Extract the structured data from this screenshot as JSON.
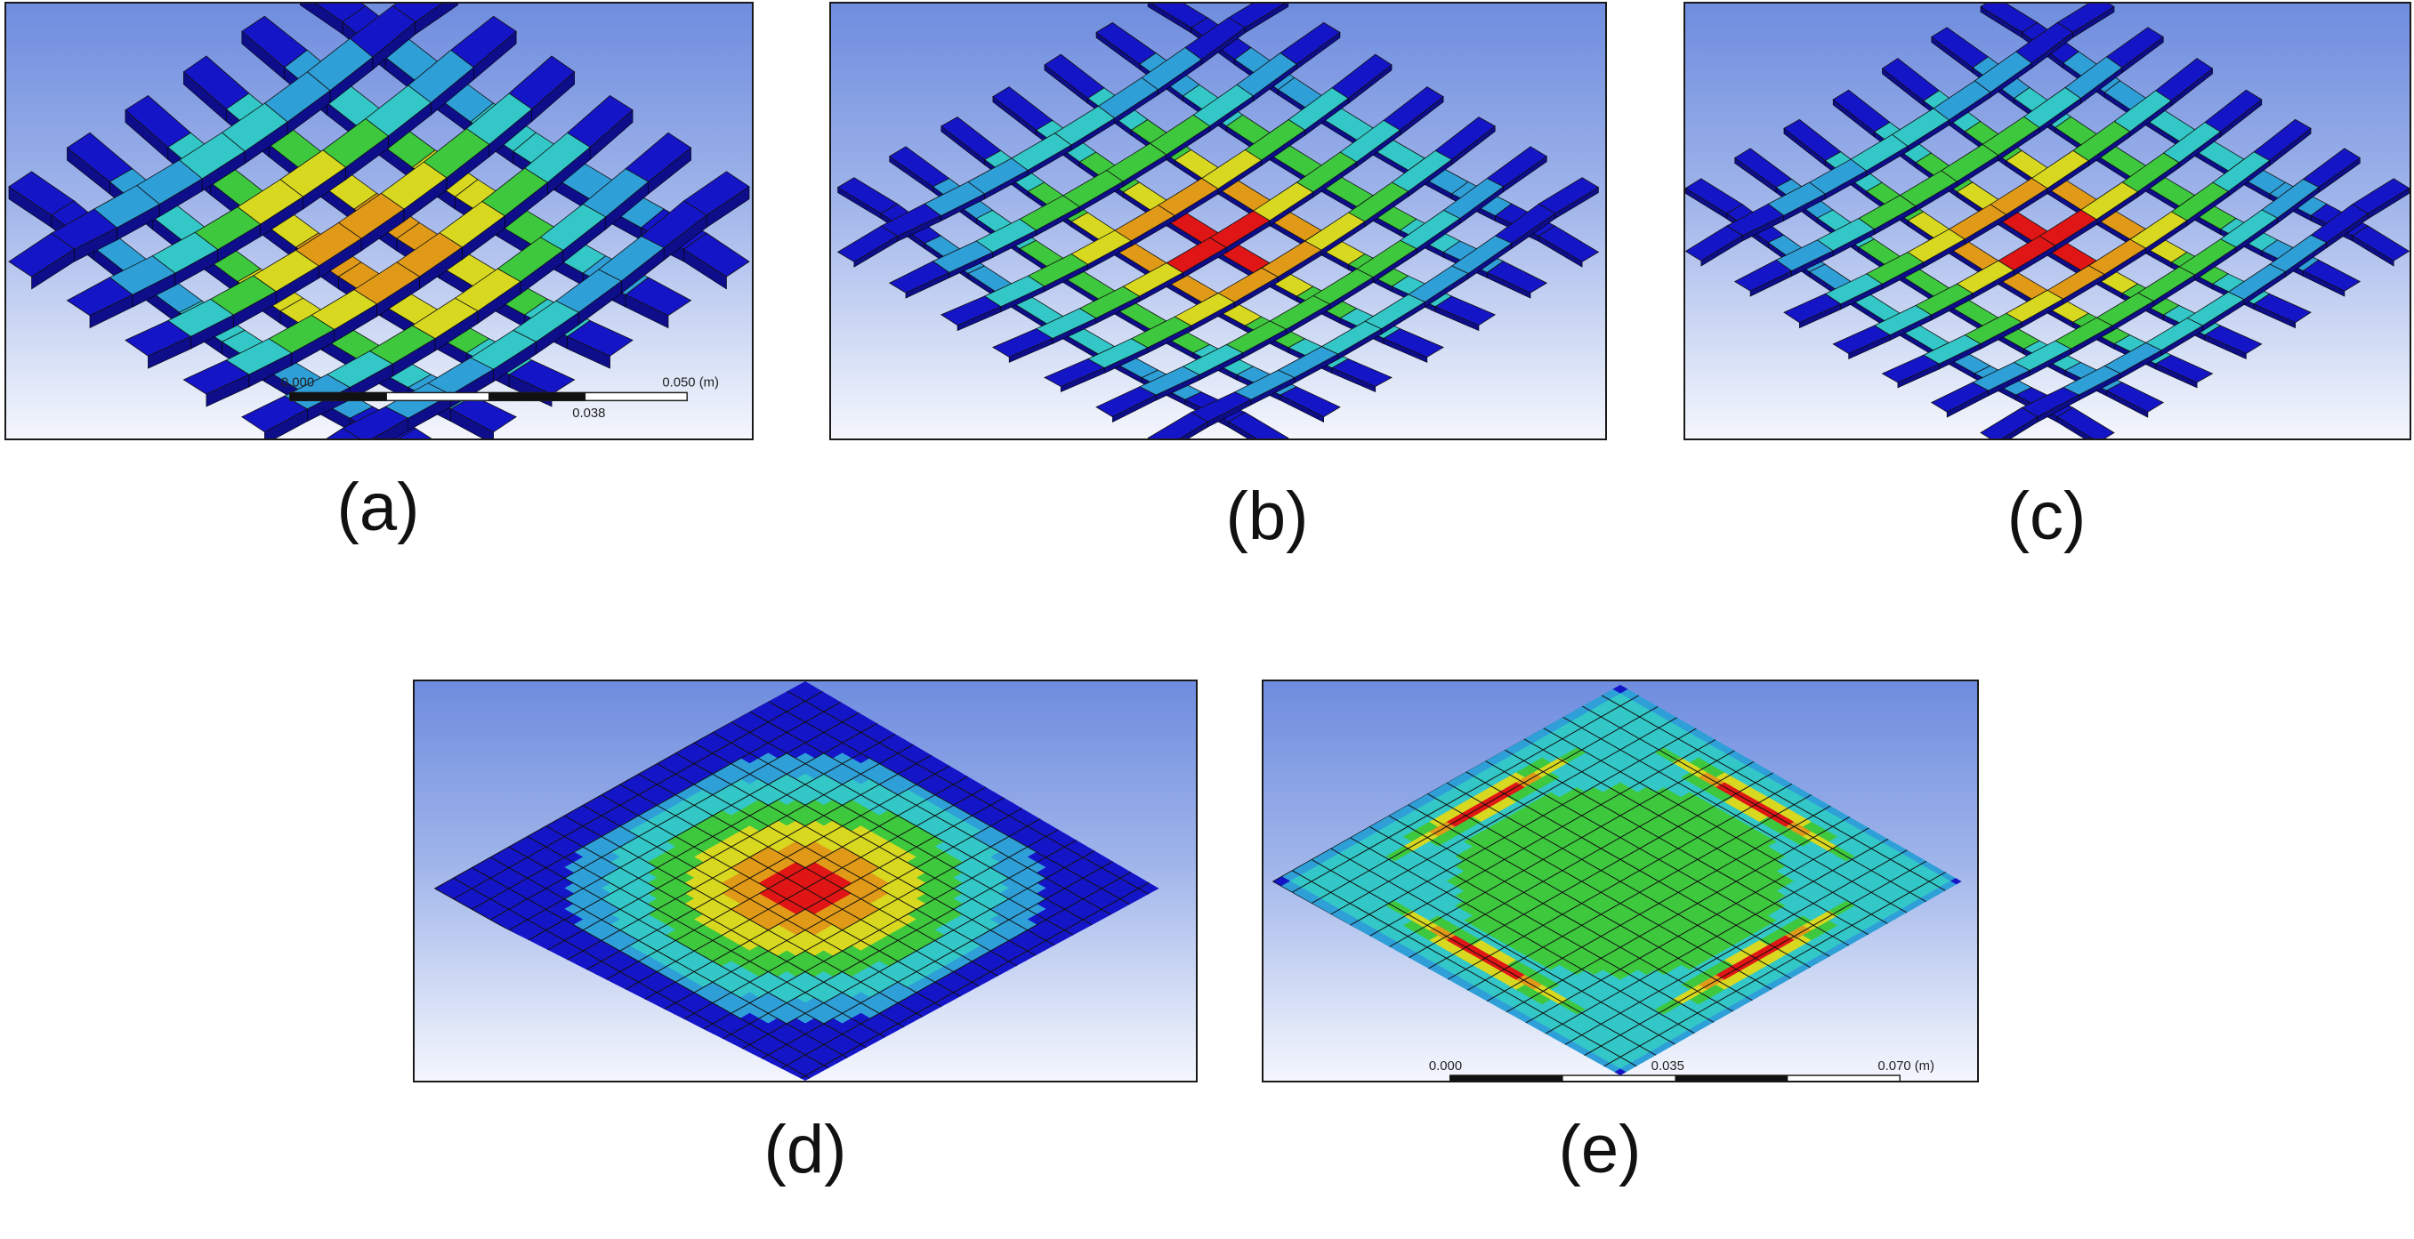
{
  "figure": {
    "panels": [
      {
        "id": "a",
        "caption": "(a)",
        "kind": "lattice-beams"
      },
      {
        "id": "b",
        "caption": "(b)",
        "kind": "lattice-thin"
      },
      {
        "id": "c",
        "caption": "(c)",
        "kind": "lattice-thin"
      },
      {
        "id": "d",
        "caption": "(d)",
        "kind": "plate-center"
      },
      {
        "id": "e",
        "caption": "(e)",
        "kind": "plate-edges"
      }
    ],
    "scale_a": {
      "start": "0.000",
      "mid": "0.038",
      "end": "0.050 (m)"
    },
    "scale_e": {
      "start": "0.000",
      "mid": "0.035",
      "end": "0.070 (m)"
    }
  },
  "contour_colors": {
    "low": "#1515c8",
    "low_mid": "#2f9fd8",
    "mid": "#33c7c7",
    "mid_high": "#3ec83e",
    "high_mid": "#d8d820",
    "high": "#e09a18",
    "max": "#e01515"
  },
  "background_colors": {
    "top": "#6f8ddf",
    "bottom": "#f4f6fd"
  }
}
